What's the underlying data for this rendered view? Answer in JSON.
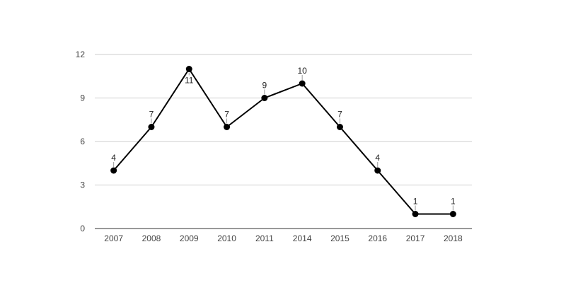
{
  "chart_data": {
    "type": "line",
    "title": "",
    "xlabel": "",
    "ylabel": "",
    "categories": [
      "2007",
      "2008",
      "2009",
      "2010",
      "2011",
      "2014",
      "2015",
      "2016",
      "2017",
      "2018"
    ],
    "values": [
      4,
      7,
      11,
      7,
      9,
      10,
      7,
      4,
      1,
      1
    ],
    "ylim": [
      0,
      12
    ],
    "yticks": [
      0,
      3,
      6,
      9,
      12
    ],
    "grid": true,
    "legend": "none",
    "line_color": "#000000",
    "grid_color": "#cccccc",
    "axis_color": "#333333"
  }
}
